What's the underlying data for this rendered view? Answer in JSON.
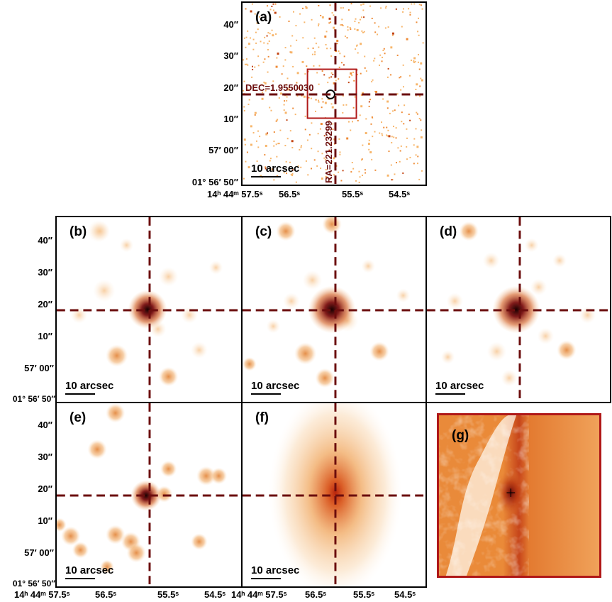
{
  "colors": {
    "crosshair": "#6b0d0d",
    "blob": "#e07b2a",
    "core": "#7a0f0f",
    "box": "#b01818",
    "g_frame": "#b01818"
  },
  "panels": {
    "a": {
      "label": "(a)",
      "scale": "10 arcsec",
      "dec_label": "DEC=1.9550030",
      "ra_label": "RA=221.23299"
    },
    "b": {
      "label": "(b)",
      "scale": "10 arcsec"
    },
    "c": {
      "label": "(c)",
      "scale": "10 arcsec"
    },
    "d": {
      "label": "(d)",
      "scale": "10 arcsec"
    },
    "e": {
      "label": "(e)",
      "scale": "10 arcsec"
    },
    "f": {
      "label": "(f)",
      "scale": "10 arcsec"
    },
    "g": {
      "label": "(g)"
    }
  },
  "dec_ticks": [
    "40″",
    "30″",
    "20″",
    "10″",
    "57′ 00″",
    "01° 56′ 50″"
  ],
  "ra_ticks": {
    "first": "14ʰ 44ᵐ 57.5ˢ",
    "second": "56.5ˢ",
    "third": "55.5ˢ",
    "fourth": "54.5ˢ"
  }
}
